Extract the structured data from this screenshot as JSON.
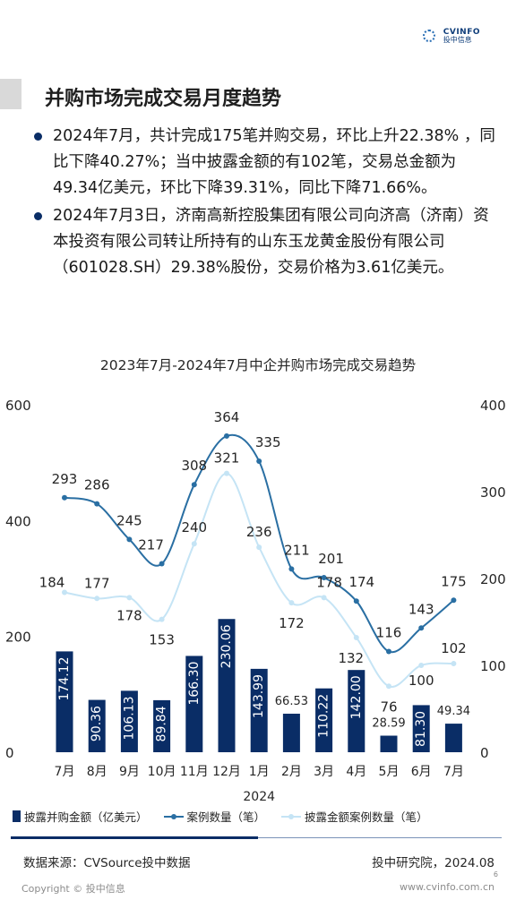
{
  "header": {
    "logo_text_en": "CVINFO",
    "logo_text_cn": "投中信息",
    "title": "并购市场完成交易月度趋势"
  },
  "bullets": [
    "2024年7月，共计完成175笔并购交易，环比上升22.38% ，同比下降40.27%；当中披露金额的有102笔，交易总金额为49.34亿美元，环比下降39.31%，同比下降71.66%。",
    "2024年7月3日，济南高新控股集团有限公司向济高（济南）资本投资有限公司转让所持有的山东玉龙黄金股份有限公司（601028.SH）29.38%股份，交易价格为3.61亿美元。"
  ],
  "chart_data": {
    "type": "bar",
    "title": "2023年7月-2024年7月中企并购市场完成交易趋势",
    "categories": [
      "7月",
      "8月",
      "9月",
      "10月",
      "11月",
      "12月",
      "1月",
      "2月",
      "3月",
      "4月",
      "5月",
      "6月",
      "7月"
    ],
    "x_sublabel": "2024",
    "y_left_ticks": [
      "600",
      "400",
      "200",
      "0"
    ],
    "y_right_ticks": [
      "400",
      "300",
      "200",
      "100",
      "0"
    ],
    "ylim_left": [
      0,
      600
    ],
    "ylim_right": [
      0,
      400
    ],
    "bars": {
      "name": "披露并购金额（亿美元）",
      "values": [
        174.12,
        90.36,
        106.13,
        89.84,
        166.3,
        230.06,
        143.99,
        66.53,
        110.22,
        142.0,
        28.59,
        81.3,
        49.34
      ],
      "labels": [
        "174.12",
        "90.36",
        "106.13",
        "89.84",
        "166.30",
        "230.06",
        "143.99",
        "66.53",
        "110.22",
        "142.00",
        "28.59",
        "81.30",
        "49.34"
      ],
      "color": "#0a2d66"
    },
    "series": [
      {
        "name": "案例数量（笔）",
        "axis": "right",
        "values": [
          293,
          286,
          245,
          217,
          308,
          364,
          335,
          211,
          201,
          174,
          116,
          143,
          175
        ],
        "color": "#2a6fa3"
      },
      {
        "name": "披露金额案例数量（笔）",
        "axis": "right",
        "values": [
          184,
          177,
          178,
          153,
          240,
          321,
          236,
          172,
          178,
          132,
          76,
          100,
          102
        ],
        "color": "#c5e4f5"
      }
    ]
  },
  "footer": {
    "source": "数据来源：CVSource投中数据",
    "source_right": "投中研究院，2024.08",
    "page_number": "6",
    "copyright": "Copyright © 投中信息",
    "website": "www.cvinfo.com.cn"
  }
}
